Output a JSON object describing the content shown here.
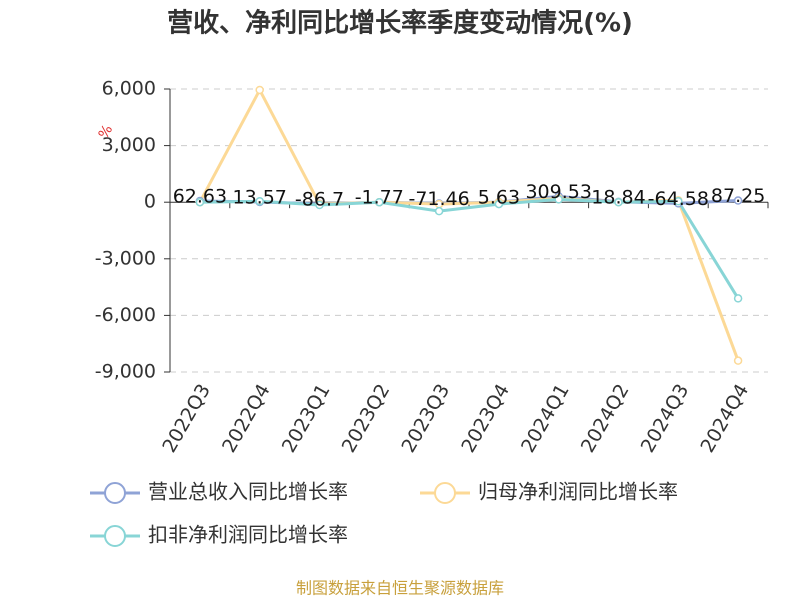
{
  "chart_data": {
    "type": "line",
    "title": "营收、净利同比增长率季度变动情况(%)",
    "y_unit": "%",
    "source": "制图数据来自恒生聚源数据库",
    "categories": [
      "2022Q3",
      "2022Q4",
      "2023Q1",
      "2023Q2",
      "2023Q3",
      "2023Q4",
      "2024Q1",
      "2024Q2",
      "2024Q3",
      "2024Q4"
    ],
    "series": [
      {
        "name": "营业总收入同比增长率",
        "color": "#8fa3d6",
        "show_labels": true,
        "values": [
          62.63,
          13.57,
          -86.7,
          -1.77,
          -71.46,
          5.63,
          309.53,
          18.84,
          -64.58,
          87.25
        ]
      },
      {
        "name": "归母净利润同比增长率",
        "color": "#fcd996",
        "show_labels": false,
        "values": [
          0,
          5950,
          -100,
          0,
          -100,
          0,
          200,
          0,
          100,
          -8400
        ]
      },
      {
        "name": "扣非净利润同比增长率",
        "color": "#88d5d6",
        "show_labels": false,
        "values": [
          0,
          50,
          -150,
          0,
          -475,
          -100,
          150,
          0,
          50,
          -5100
        ]
      }
    ],
    "ylim": [
      -9000,
      6000
    ],
    "yticks": [
      {
        "value": -9000,
        "label": "-9,000"
      },
      {
        "value": -6000,
        "label": "-6,000"
      },
      {
        "value": -3000,
        "label": "-3,000"
      },
      0,
      {
        "value": 3000,
        "label": "3,000"
      },
      {
        "value": 6000,
        "label": "6,000"
      }
    ],
    "grid": true
  }
}
